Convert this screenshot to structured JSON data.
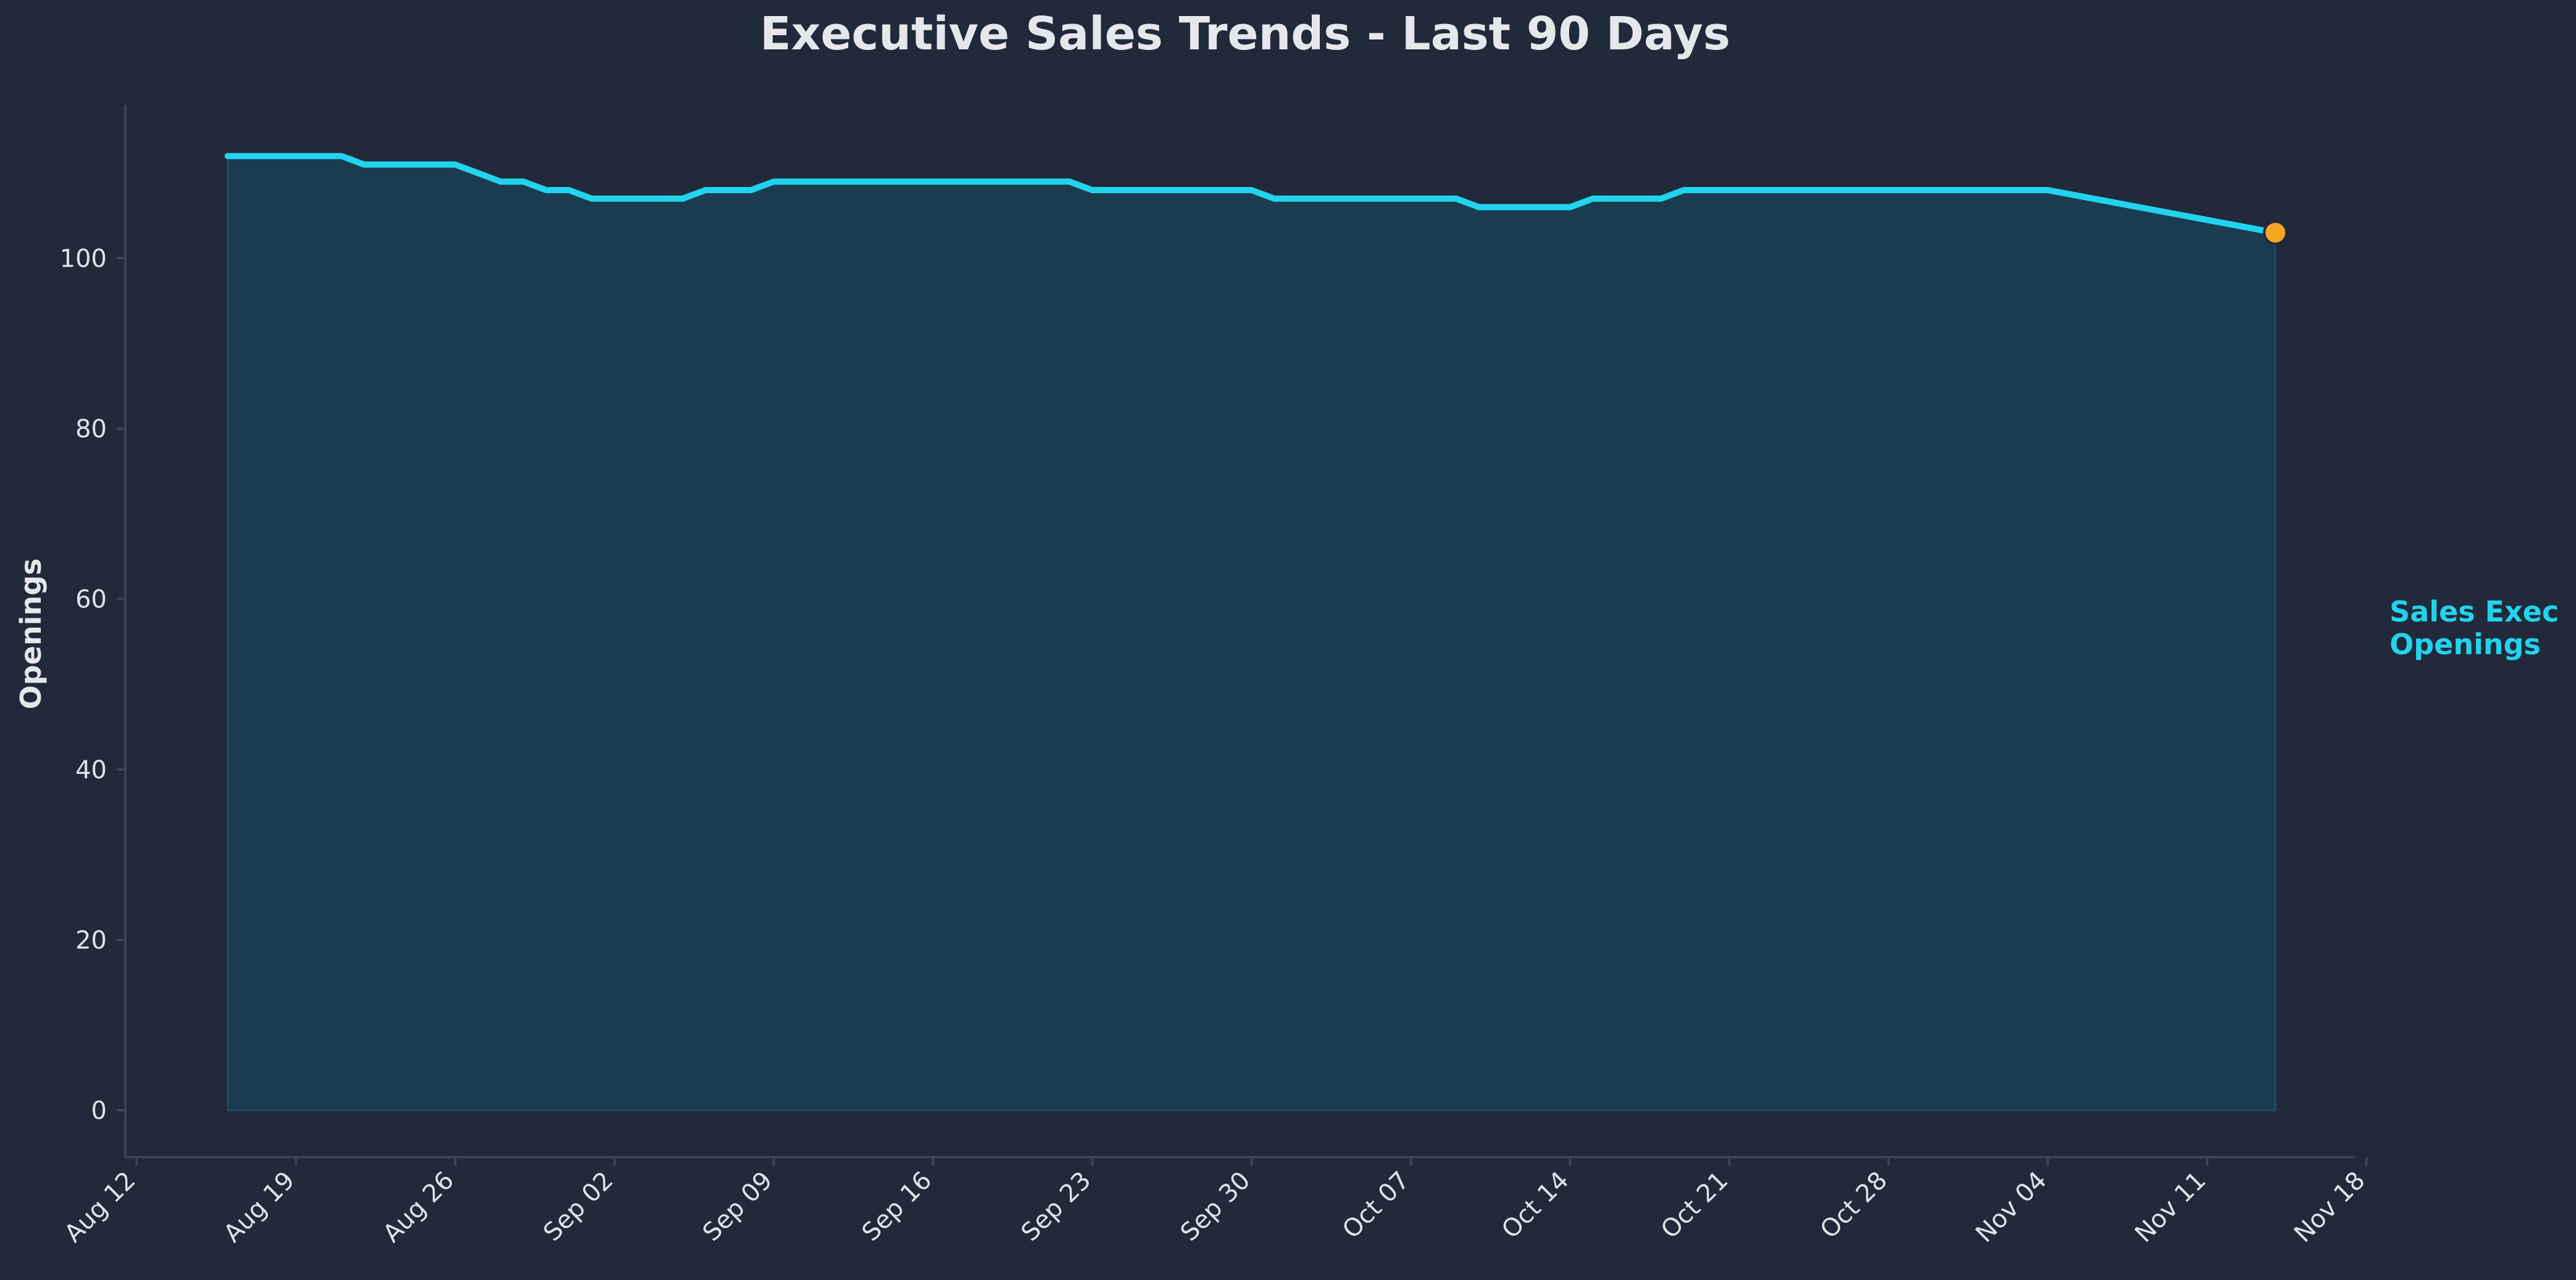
{
  "chart_data": {
    "type": "area",
    "title": "Executive Sales Trends - Last 90 Days",
    "xlabel": "",
    "ylabel": "Openings",
    "ylim": [
      -5.5,
      118
    ],
    "yticks": [
      0,
      20,
      40,
      60,
      80,
      100
    ],
    "xlim_days": [
      -0.5,
      97.5
    ],
    "xticks": [
      {
        "label": "Aug 12",
        "day": 0
      },
      {
        "label": "Aug 19",
        "day": 7
      },
      {
        "label": "Aug 26",
        "day": 14
      },
      {
        "label": "Sep 02",
        "day": 21
      },
      {
        "label": "Sep 09",
        "day": 28
      },
      {
        "label": "Sep 16",
        "day": 35
      },
      {
        "label": "Sep 23",
        "day": 42
      },
      {
        "label": "Sep 30",
        "day": 49
      },
      {
        "label": "Oct 07",
        "day": 56
      },
      {
        "label": "Oct 14",
        "day": 63
      },
      {
        "label": "Oct 21",
        "day": 70
      },
      {
        "label": "Oct 28",
        "day": 77
      },
      {
        "label": "Nov 04",
        "day": 84
      },
      {
        "label": "Nov 11",
        "day": 91
      },
      {
        "label": "Nov 18",
        "day": 98
      }
    ],
    "series": [
      {
        "name": "Sales Exec Openings",
        "label_lines": [
          "Sales Exec",
          "Openings"
        ],
        "color": "#22d3ee",
        "fill_color": "#1b3c50",
        "points": [
          {
            "day": 4,
            "value": 112
          },
          {
            "day": 9,
            "value": 112
          },
          {
            "day": 10,
            "value": 111
          },
          {
            "day": 14,
            "value": 111
          },
          {
            "day": 16,
            "value": 109
          },
          {
            "day": 17,
            "value": 109
          },
          {
            "day": 18,
            "value": 108
          },
          {
            "day": 19,
            "value": 108
          },
          {
            "day": 20,
            "value": 107
          },
          {
            "day": 24,
            "value": 107
          },
          {
            "day": 25,
            "value": 108
          },
          {
            "day": 27,
            "value": 108
          },
          {
            "day": 28,
            "value": 109
          },
          {
            "day": 41,
            "value": 109
          },
          {
            "day": 42,
            "value": 108
          },
          {
            "day": 49,
            "value": 108
          },
          {
            "day": 50,
            "value": 107
          },
          {
            "day": 58,
            "value": 107
          },
          {
            "day": 59,
            "value": 106
          },
          {
            "day": 63,
            "value": 106
          },
          {
            "day": 64,
            "value": 107
          },
          {
            "day": 67,
            "value": 107
          },
          {
            "day": 68,
            "value": 108
          },
          {
            "day": 84,
            "value": 108
          },
          {
            "day": 94,
            "value": 103
          }
        ],
        "last_point_marker_color": "#f5a623"
      }
    ],
    "colors": {
      "background": "#212a3a",
      "text": "#e5e7eb",
      "tick_text": "#e0e3e8",
      "axis": "#3c4556",
      "grid": "#283141"
    }
  }
}
